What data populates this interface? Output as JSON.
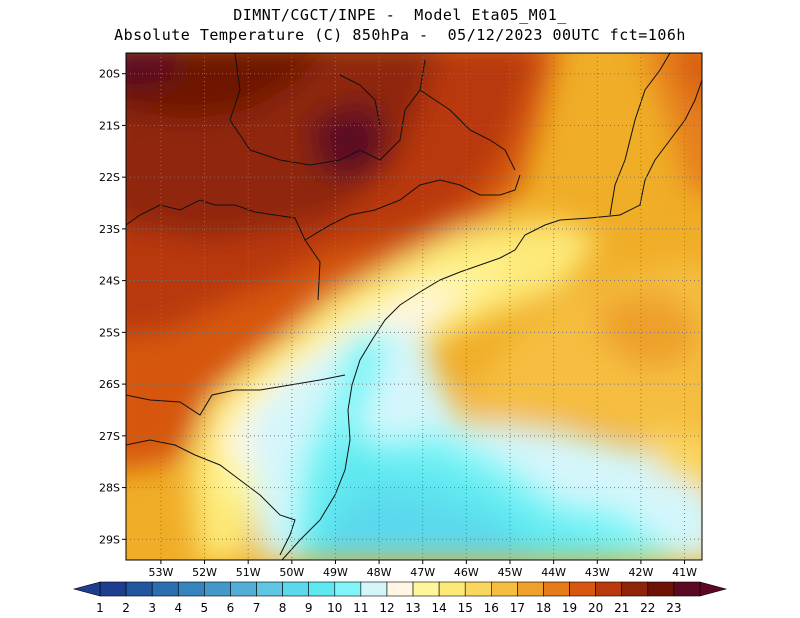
{
  "title": {
    "line1": "DIMNT/CGCT/INPE -  Model Eta05_M01_",
    "line2": "Absolute Temperature (C) 850hPa -  05/12/2023 00UTC fct=106h"
  },
  "map": {
    "lon_range": [
      -53.8,
      -40.6
    ],
    "lat_range": [
      -29.4,
      -19.6
    ],
    "lat_ticks": [
      "20S",
      "21S",
      "22S",
      "23S",
      "24S",
      "25S",
      "26S",
      "27S",
      "28S",
      "29S"
    ],
    "lat_values": [
      -20,
      -21,
      -22,
      -23,
      -24,
      -25,
      -26,
      -27,
      -28,
      -29
    ],
    "lon_ticks": [
      "53W",
      "52W",
      "51W",
      "50W",
      "49W",
      "48W",
      "47W",
      "46W",
      "45W",
      "44W",
      "43W",
      "42W",
      "41W"
    ],
    "lon_values": [
      -53,
      -52,
      -51,
      -50,
      -49,
      -48,
      -47,
      -46,
      -45,
      -44,
      -43,
      -42,
      -41
    ],
    "grid": true,
    "field": "temperature_850hPa_C"
  },
  "colorbar": {
    "labels": [
      "1",
      "2",
      "3",
      "4",
      "5",
      "6",
      "7",
      "8",
      "9",
      "10",
      "11",
      "12",
      "13",
      "14",
      "15",
      "16",
      "17",
      "18",
      "19",
      "20",
      "21",
      "22",
      "23"
    ],
    "colors": [
      "#1f3d8f",
      "#2257a0",
      "#2a6fb0",
      "#3584bd",
      "#4498c9",
      "#52aed6",
      "#5ec5e2",
      "#5cd8ec",
      "#5ee8f0",
      "#7ff5f7",
      "#d4f6fb",
      "#fff6e3",
      "#fff69a",
      "#fde978",
      "#f9d660",
      "#f5be40",
      "#eea02a",
      "#e57b1a",
      "#d65710",
      "#b9390b",
      "#8f2508",
      "#6e1206",
      "#5c0822"
    ]
  }
}
